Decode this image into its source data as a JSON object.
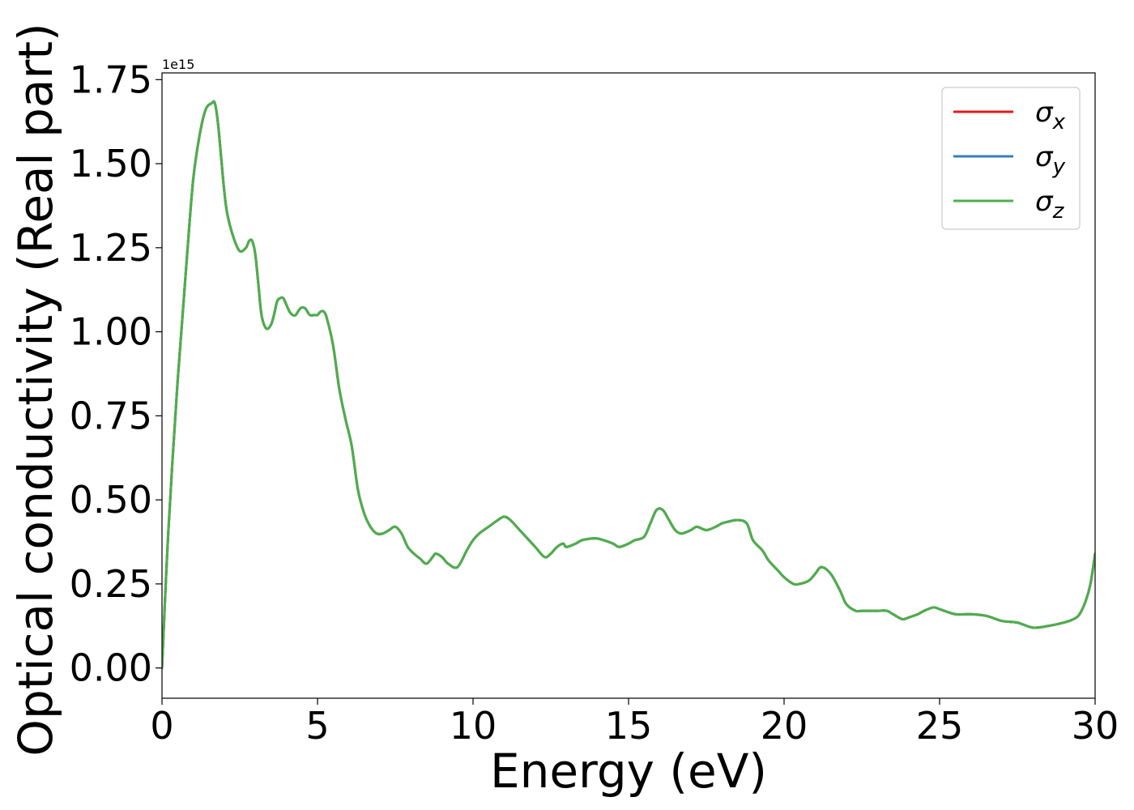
{
  "chart_data": {
    "type": "line",
    "xlabel": "Energy (eV)",
    "ylabel": "Optical conductivity (Real part)",
    "y_offset_text": "1e15",
    "xlim": [
      0,
      30
    ],
    "ylim": [
      -0.09,
      1.77
    ],
    "xticks": [
      0,
      5,
      10,
      15,
      20,
      25,
      30
    ],
    "xtick_labels": [
      "0",
      "5",
      "10",
      "15",
      "20",
      "25",
      "30"
    ],
    "yticks": [
      0.0,
      0.25,
      0.5,
      0.75,
      1.0,
      1.25,
      1.5,
      1.75
    ],
    "ytick_labels": [
      "0.00",
      "0.25",
      "0.50",
      "0.75",
      "1.00",
      "1.25",
      "1.50",
      "1.75"
    ],
    "grid": false,
    "legend_position": "top-right",
    "series": [
      {
        "name": "σ",
        "subscript": "x",
        "color": "#e41a1c"
      },
      {
        "name": "σ",
        "subscript": "y",
        "color": "#377eb8"
      },
      {
        "name": "σ",
        "subscript": "z",
        "color": "#4daf4a"
      }
    ],
    "x": [
      0,
      0.2,
      0.5,
      0.8,
      1.0,
      1.2,
      1.4,
      1.6,
      1.7,
      1.8,
      1.9,
      2.0,
      2.1,
      2.3,
      2.5,
      2.7,
      2.8,
      2.9,
      3.0,
      3.1,
      3.2,
      3.35,
      3.5,
      3.6,
      3.7,
      3.8,
      3.9,
      4.0,
      4.1,
      4.2,
      4.3,
      4.45,
      4.6,
      4.75,
      4.9,
      5.0,
      5.1,
      5.2,
      5.3,
      5.5,
      5.7,
      5.9,
      6.1,
      6.3,
      6.5,
      6.7,
      6.9,
      7.1,
      7.3,
      7.5,
      7.7,
      7.9,
      8.1,
      8.3,
      8.5,
      8.7,
      8.8,
      9.0,
      9.2,
      9.5,
      9.8,
      10.0,
      10.2,
      10.5,
      10.8,
      11.0,
      11.2,
      11.5,
      11.8,
      12.0,
      12.3,
      12.5,
      12.7,
      12.9,
      13.0,
      13.3,
      13.5,
      13.8,
      14.0,
      14.2,
      14.5,
      14.7,
      15.0,
      15.2,
      15.5,
      15.7,
      15.9,
      16.1,
      16.3,
      16.5,
      16.7,
      17.0,
      17.2,
      17.5,
      17.8,
      18.0,
      18.2,
      18.5,
      18.8,
      19.0,
      19.3,
      19.5,
      19.8,
      20.0,
      20.3,
      20.5,
      20.8,
      21.0,
      21.2,
      21.5,
      21.8,
      22.0,
      22.3,
      22.5,
      22.8,
      23.0,
      23.3,
      23.5,
      23.8,
      24.0,
      24.3,
      24.5,
      24.8,
      25.0,
      25.5,
      26.0,
      26.5,
      27.0,
      27.5,
      28.0,
      28.5,
      29.0,
      29.3,
      29.5,
      29.7,
      29.85,
      30.0
    ],
    "y": [
      0.0,
      0.4,
      0.85,
      1.22,
      1.45,
      1.58,
      1.66,
      1.68,
      1.68,
      1.62,
      1.52,
      1.42,
      1.35,
      1.28,
      1.24,
      1.25,
      1.27,
      1.27,
      1.23,
      1.14,
      1.05,
      1.01,
      1.02,
      1.05,
      1.09,
      1.1,
      1.1,
      1.08,
      1.06,
      1.05,
      1.05,
      1.07,
      1.07,
      1.05,
      1.05,
      1.05,
      1.06,
      1.06,
      1.04,
      0.96,
      0.83,
      0.74,
      0.66,
      0.53,
      0.46,
      0.42,
      0.4,
      0.4,
      0.41,
      0.42,
      0.4,
      0.36,
      0.34,
      0.325,
      0.31,
      0.33,
      0.34,
      0.33,
      0.31,
      0.3,
      0.35,
      0.38,
      0.4,
      0.42,
      0.44,
      0.45,
      0.44,
      0.41,
      0.38,
      0.36,
      0.33,
      0.34,
      0.36,
      0.37,
      0.36,
      0.37,
      0.38,
      0.385,
      0.385,
      0.38,
      0.37,
      0.36,
      0.37,
      0.38,
      0.39,
      0.43,
      0.47,
      0.47,
      0.44,
      0.41,
      0.4,
      0.41,
      0.42,
      0.41,
      0.42,
      0.43,
      0.435,
      0.44,
      0.43,
      0.38,
      0.35,
      0.32,
      0.29,
      0.27,
      0.25,
      0.25,
      0.26,
      0.28,
      0.3,
      0.28,
      0.23,
      0.19,
      0.17,
      0.17,
      0.17,
      0.17,
      0.17,
      0.16,
      0.145,
      0.15,
      0.16,
      0.17,
      0.18,
      0.175,
      0.16,
      0.16,
      0.155,
      0.14,
      0.135,
      0.12,
      0.125,
      0.135,
      0.145,
      0.16,
      0.2,
      0.25,
      0.34
    ]
  }
}
